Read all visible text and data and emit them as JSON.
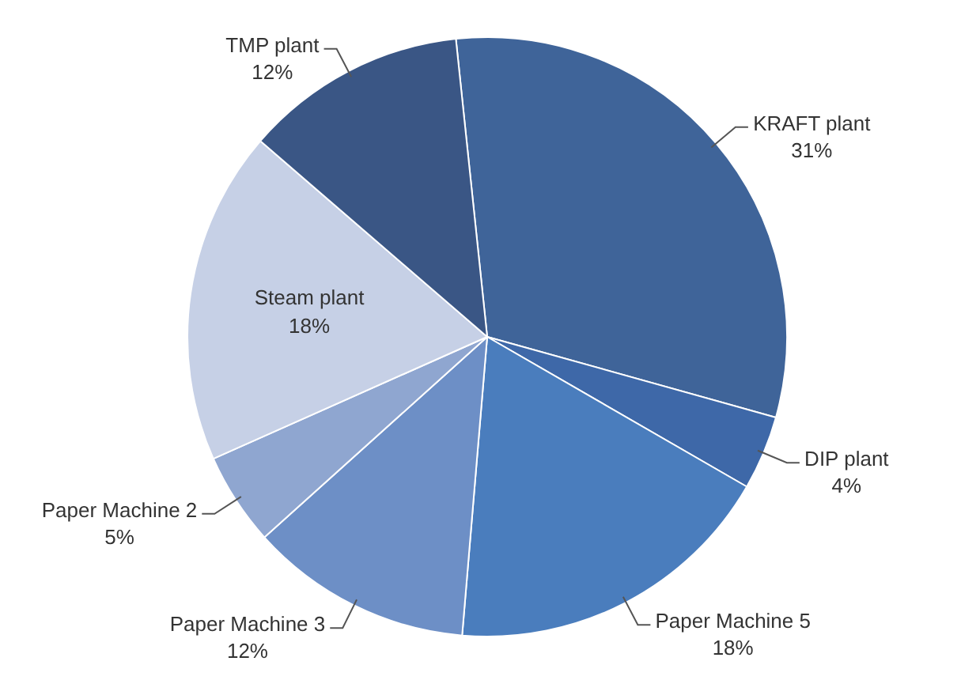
{
  "chart_data": {
    "type": "pie",
    "categories": [
      "KRAFT plant",
      "DIP plant",
      "Paper Machine 5",
      "Paper Machine 3",
      "Paper Machine 2",
      "Steam plant",
      "TMP plant"
    ],
    "values": [
      31,
      4,
      18,
      12,
      5,
      18,
      12
    ],
    "colors": [
      "#3f6499",
      "#3e68a8",
      "#4a7dbd",
      "#6d8fc6",
      "#8fa6d0",
      "#c6d0e6",
      "#3a5685"
    ],
    "value_labels": [
      "31%",
      "4%",
      "18%",
      "12%",
      "5%",
      "18%",
      "12%"
    ],
    "legend": false
  }
}
